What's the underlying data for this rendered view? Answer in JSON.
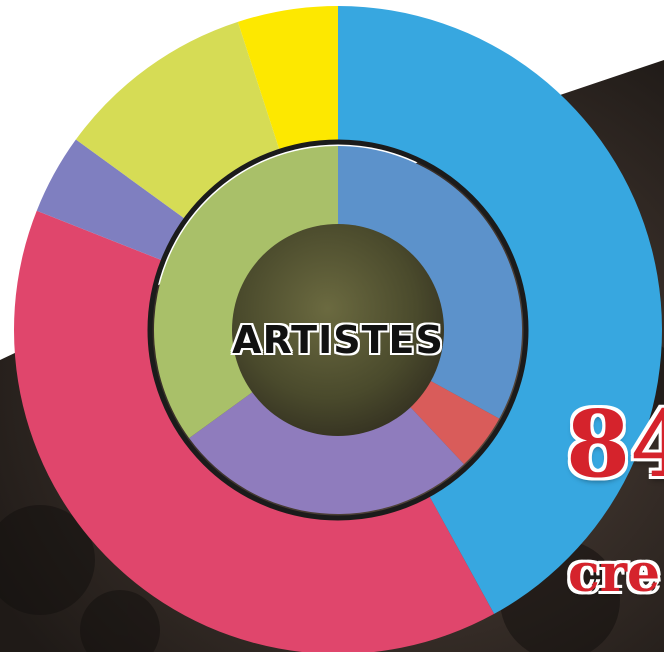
{
  "chart_data": {
    "type": "pie",
    "center_label": "ARTISTES",
    "outer_ring": {
      "slices": [
        {
          "value": 42,
          "color": "#37a7e0"
        },
        {
          "value": 39,
          "color": "#e0466c"
        },
        {
          "value": 4,
          "color": "#7f7fc0"
        },
        {
          "value": 10,
          "color": "#d6dc55"
        },
        {
          "value": 5,
          "color": "#fde800"
        }
      ]
    },
    "inner_ring": {
      "slices": [
        {
          "value": 33,
          "color": "#5c92cb"
        },
        {
          "value": 5,
          "color": "#d95c5a"
        },
        {
          "value": 27,
          "color": "#8f7cbd"
        },
        {
          "value": 35,
          "color": "#a9c069"
        }
      ]
    },
    "headline_number": "84",
    "headline_caption": "cre",
    "colors": {
      "headline": "#d5232c",
      "photo_dark": "#2c2620"
    }
  }
}
